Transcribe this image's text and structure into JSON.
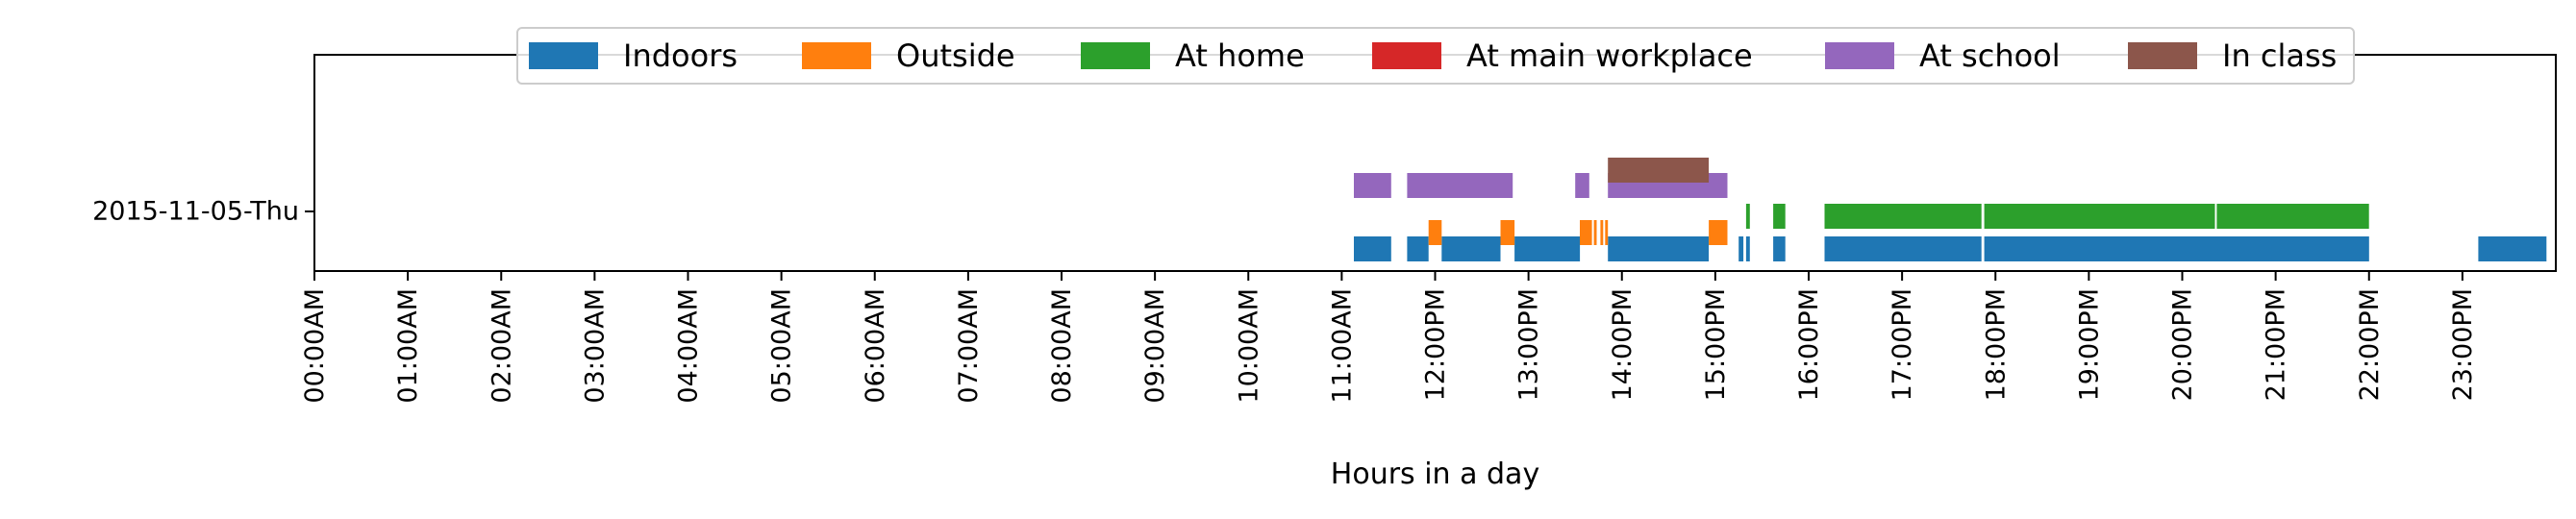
{
  "chart_data": {
    "type": "timeline",
    "xlabel": "Hours in a day",
    "ylabel": "",
    "x_range_hours": [
      0,
      24
    ],
    "x_ticks": [
      "00:00AM",
      "01:00AM",
      "02:00AM",
      "03:00AM",
      "04:00AM",
      "05:00AM",
      "06:00AM",
      "07:00AM",
      "08:00AM",
      "09:00AM",
      "10:00AM",
      "11:00AM",
      "12:00PM",
      "13:00PM",
      "14:00PM",
      "15:00PM",
      "16:00PM",
      "17:00PM",
      "18:00PM",
      "19:00PM",
      "20:00PM",
      "21:00PM",
      "22:00PM",
      "23:00PM"
    ],
    "y_category": "2015-11-05-Thu",
    "grid": false,
    "legend_position": "top-center",
    "series": [
      {
        "name": "Indoors",
        "color": "#1f77b4",
        "intervals": [
          [
            11.13,
            11.53
          ],
          [
            11.7,
            11.93
          ],
          [
            12.07,
            12.7
          ],
          [
            12.85,
            13.55
          ],
          [
            13.85,
            14.93
          ],
          [
            15.25,
            15.3
          ],
          [
            15.33,
            15.37
          ],
          [
            15.62,
            15.75
          ],
          [
            16.17,
            17.85
          ],
          [
            17.88,
            22.0
          ],
          [
            23.17,
            23.9
          ]
        ]
      },
      {
        "name": "Outside",
        "color": "#ff7f0e",
        "intervals": [
          [
            11.93,
            12.07
          ],
          [
            12.7,
            12.85
          ],
          [
            13.55,
            13.68
          ],
          [
            13.7,
            13.73
          ],
          [
            13.77,
            13.8
          ],
          [
            13.82,
            13.85
          ],
          [
            14.93,
            15.13
          ]
        ]
      },
      {
        "name": "At home",
        "color": "#2ca02c",
        "intervals": [
          [
            15.33,
            15.37
          ],
          [
            15.62,
            15.75
          ],
          [
            16.17,
            17.85
          ],
          [
            17.88,
            20.35
          ],
          [
            20.37,
            22.0
          ]
        ]
      },
      {
        "name": "At main workplace",
        "color": "#d62728",
        "intervals": []
      },
      {
        "name": "At school",
        "color": "#9467bd",
        "intervals": [
          [
            11.13,
            11.53
          ],
          [
            11.7,
            12.83
          ],
          [
            13.5,
            13.65
          ],
          [
            13.85,
            15.13
          ]
        ]
      },
      {
        "name": "In class",
        "color": "#8c564b",
        "intervals": [
          [
            13.85,
            14.93
          ]
        ]
      }
    ]
  }
}
